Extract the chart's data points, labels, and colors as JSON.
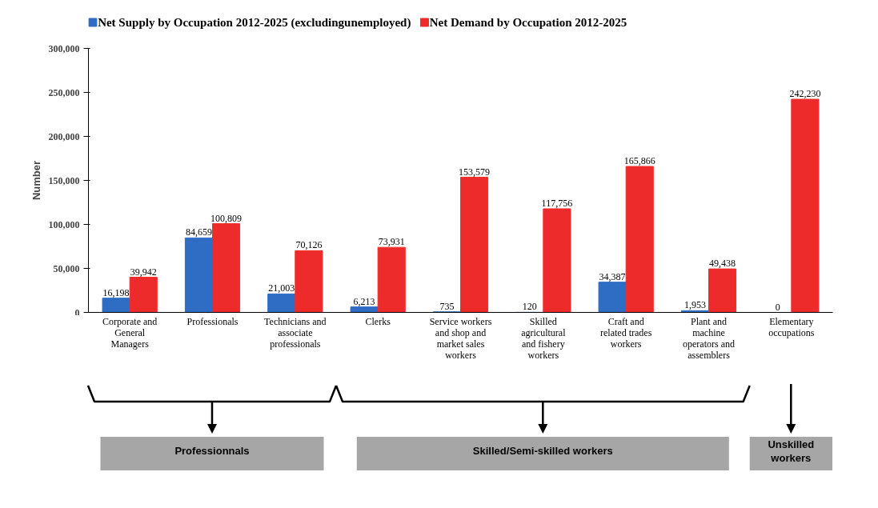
{
  "chart_data": {
    "type": "bar",
    "categories": [
      "Corporate and General Managers",
      "Professionals",
      "Technicians and associate professionals",
      "Clerks",
      "Service workers and shop and market sales workers",
      "Skilled agricultural and fishery workers",
      "Craft and related trades workers",
      "Plant and machine operators and assemblers",
      "Elementary occupations"
    ],
    "series": [
      {
        "name": "Net Supply by Occupation 2012-2025 (excludingunemployed)",
        "color": "#2f6cc4",
        "values": [
          16198,
          84659,
          21003,
          6213,
          735,
          120,
          34387,
          1953,
          0
        ],
        "value_labels": [
          "16,198",
          "84,659",
          "21,003",
          "6,213",
          "735",
          "120",
          "34,387",
          "1,953",
          "0"
        ]
      },
      {
        "name": "Net Demand by Occupation 2012-2025",
        "color": "#ee2b2b",
        "values": [
          39942,
          100809,
          70126,
          73931,
          153579,
          117756,
          165866,
          49438,
          242230
        ],
        "value_labels": [
          "39,942",
          "100,809",
          "70,126",
          "73,931",
          "153,579",
          "117,756",
          "165,866",
          "49,438",
          "242,230"
        ]
      }
    ],
    "ylabel": "Number",
    "ylim": [
      0,
      300000
    ],
    "yticks": [
      0,
      {
        "value": 50000,
        "label": "50,000"
      },
      {
        "value": 100000,
        "label": "100,000"
      },
      {
        "value": 150000,
        "label": "150,000"
      },
      {
        "value": 200000,
        "label": "200,000"
      },
      {
        "value": 250000,
        "label": "250,000"
      },
      {
        "value": 300000,
        "label": "300,000"
      }
    ],
    "legend": "top",
    "annotations": [
      "Professionnals",
      "Skilled/Semi-skilled workers",
      "Unskilled workers"
    ]
  }
}
